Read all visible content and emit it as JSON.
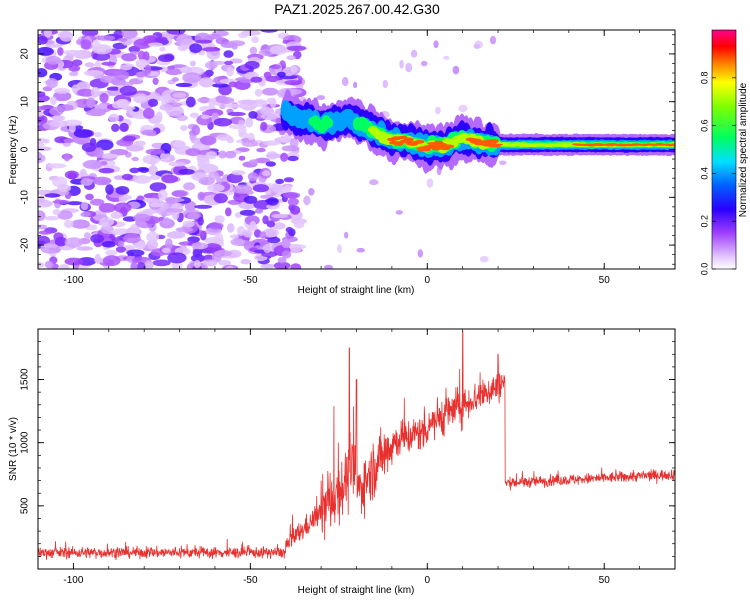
{
  "title": "PAZ1.2025.267.00.42.G30",
  "chart_data": [
    {
      "type": "heatmap",
      "xlabel": "Height of straight line (km)",
      "ylabel": "Frequency (Hz)",
      "xlim": [
        -110,
        70
      ],
      "ylim": [
        -25,
        25
      ],
      "x_ticks": [
        -100,
        -50,
        0,
        50
      ],
      "x_tick_labels": [
        "-100",
        "-50",
        "0",
        "50"
      ],
      "y_ticks": [
        -20,
        -10,
        0,
        10,
        20
      ],
      "y_tick_labels": [
        "-20",
        "-10",
        "0",
        "10",
        "20"
      ],
      "colorbar": {
        "label": "Normalized spectral amplitude",
        "range": [
          0,
          1
        ],
        "ticks": [
          0,
          0.2,
          0.4,
          0.6,
          0.8
        ],
        "tick_labels": [
          "0.0",
          "0.2",
          "0.4",
          "0.6",
          "0.8"
        ]
      },
      "noise_region_x": [
        -110,
        -38
      ],
      "ridge": [
        {
          "x": -38,
          "f": 7,
          "amp": 0.45
        },
        {
          "x": -34,
          "f": 6,
          "amp": 0.5
        },
        {
          "x": -30,
          "f": 5,
          "amp": 0.55
        },
        {
          "x": -26,
          "f": 6,
          "amp": 0.5
        },
        {
          "x": -22,
          "f": 6.5,
          "amp": 0.45
        },
        {
          "x": -18,
          "f": 5,
          "amp": 0.6
        },
        {
          "x": -14,
          "f": 3.5,
          "amp": 0.75
        },
        {
          "x": -10,
          "f": 2,
          "amp": 0.85
        },
        {
          "x": -5,
          "f": 1.5,
          "amp": 0.9
        },
        {
          "x": 0,
          "f": 0.5,
          "amp": 0.9
        },
        {
          "x": 5,
          "f": 0.8,
          "amp": 0.85
        },
        {
          "x": 10,
          "f": 2.5,
          "amp": 0.8
        },
        {
          "x": 15,
          "f": 1.5,
          "amp": 0.9
        },
        {
          "x": 20,
          "f": 1,
          "amp": 0.85
        },
        {
          "x": 25,
          "f": 1,
          "amp": 0.7
        },
        {
          "x": 35,
          "f": 1,
          "amp": 0.8
        },
        {
          "x": 45,
          "f": 1,
          "amp": 0.85
        },
        {
          "x": 55,
          "f": 1,
          "amp": 0.9
        },
        {
          "x": 70,
          "f": 1,
          "amp": 0.9
        }
      ]
    },
    {
      "type": "line",
      "xlabel": "Height of straight line (km)",
      "ylabel": "SNR (10 * v/v)",
      "xlim": [
        -110,
        70
      ],
      "ylim": [
        0,
        1900
      ],
      "x_ticks": [
        -100,
        -50,
        0,
        50
      ],
      "x_tick_labels": [
        "-100",
        "-50",
        "0",
        "50"
      ],
      "y_ticks": [
        500,
        1000,
        1500
      ],
      "y_tick_labels": [
        "500",
        "1000",
        "1500"
      ],
      "series": [
        {
          "color": "#e8312f",
          "segments": [
            {
              "x": [
                -110,
                -40
              ],
              "mean": [
                130,
                130
              ],
              "noise": 60
            },
            {
              "x": [
                -40,
                -30
              ],
              "mean": [
                180,
                450
              ],
              "noise": 120
            },
            {
              "x": [
                -30,
                -20
              ],
              "mean": [
                450,
                800
              ],
              "noise": 350
            },
            {
              "x": [
                -20,
                -10
              ],
              "mean": [
                600,
                1000
              ],
              "noise": 300
            },
            {
              "x": [
                -10,
                0
              ],
              "mean": [
                1000,
                1100
              ],
              "noise": 200
            },
            {
              "x": [
                0,
                10
              ],
              "mean": [
                1150,
                1300
              ],
              "noise": 220
            },
            {
              "x": [
                10,
                22
              ],
              "mean": [
                1300,
                1480
              ],
              "noise": 180
            },
            {
              "x": [
                22,
                70
              ],
              "mean": [
                680,
                750
              ],
              "noise": 60
            }
          ],
          "peaks": [
            [
              -22,
              1750
            ],
            [
              10,
              1880
            ],
            [
              20,
              1700
            ],
            [
              -20,
              1500
            ]
          ]
        }
      ]
    }
  ]
}
